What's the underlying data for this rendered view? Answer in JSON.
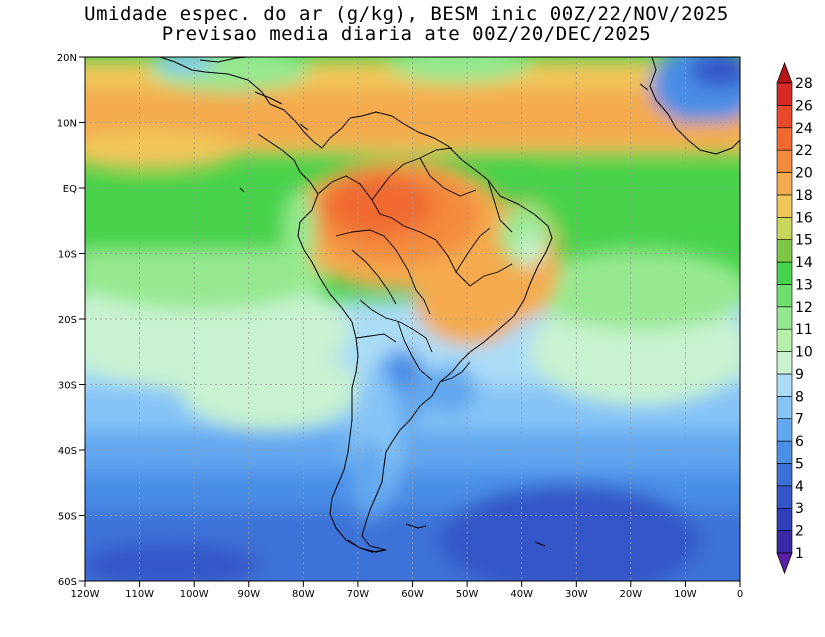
{
  "title_line1": "Umidade espec. do ar (g/kg), BESM inic 00Z/22/NOV/2025",
  "title_line2": "Previsao media diaria ate 00Z/20/DEC/2025",
  "lat_labels": [
    "20N",
    "10N",
    "EQ",
    "10S",
    "20S",
    "30S",
    "40S",
    "50S",
    "60S"
  ],
  "lon_labels": [
    "120W",
    "110W",
    "100W",
    "90W",
    "80W",
    "70W",
    "60W",
    "50W",
    "40W",
    "30W",
    "20W",
    "10W",
    "0"
  ],
  "colorbar": {
    "levels": [
      "1",
      "2",
      "3",
      "4",
      "5",
      "6",
      "7",
      "8",
      "9",
      "10",
      "11",
      "12",
      "13",
      "14",
      "15",
      "16",
      "18",
      "20",
      "22",
      "24",
      "26",
      "28"
    ],
    "colors": [
      "#5a1fa6",
      "#3a2aa8",
      "#2f3fb8",
      "#3457c8",
      "#3c72d8",
      "#4a8ee6",
      "#62a8f0",
      "#86c4f6",
      "#aadcf6",
      "#c8f2d0",
      "#b4f0a8",
      "#96e890",
      "#6ede6e",
      "#46d24a",
      "#7cc846",
      "#c8d45a",
      "#f0c65a",
      "#f4aa4e",
      "#f48a3c",
      "#f06a30",
      "#e84a2a",
      "#d62a24",
      "#b41414"
    ]
  }
}
